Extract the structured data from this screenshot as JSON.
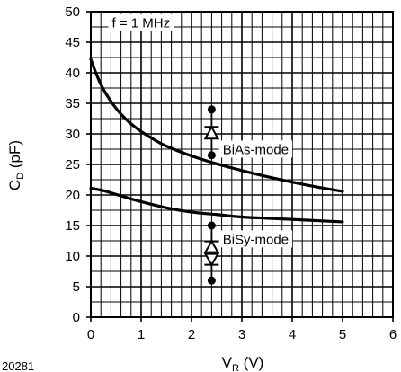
{
  "figure_id": "20281",
  "chart_data": {
    "type": "line",
    "xlabel": {
      "main": "V",
      "sub": "R",
      "unit": " (V)"
    },
    "ylabel": {
      "main": "C",
      "sub": "D",
      "unit": " (pF)"
    },
    "xlim": [
      0,
      6
    ],
    "ylim": [
      0,
      50
    ],
    "x_ticks": [
      0,
      1,
      2,
      3,
      4,
      5,
      6
    ],
    "y_ticks": [
      0,
      5,
      10,
      15,
      20,
      25,
      30,
      35,
      40,
      45,
      50
    ],
    "x_tick_labels": [
      "0",
      "1",
      "2",
      "3",
      "4",
      "5",
      "6"
    ],
    "y_tick_labels": [
      "0",
      "5",
      "10",
      "15",
      "20",
      "25",
      "30",
      "35",
      "40",
      "45",
      "50"
    ],
    "minor_x_step": 0.2,
    "minor_y_step": 2.5,
    "grid": true,
    "colors": {
      "line": "#000000",
      "grid": "#000000",
      "background": "#ffffff"
    },
    "annotations": [
      {
        "text": "f = 1 MHz",
        "x": 0.42,
        "y": 47.7
      },
      {
        "text": "BiAs-mode",
        "x": 2.62,
        "y": 27.0
      },
      {
        "text": "BiSy-mode",
        "x": 2.62,
        "y": 12.3
      }
    ],
    "series": [
      {
        "x": [
          0,
          0.1,
          0.25,
          0.5,
          0.75,
          1.0,
          1.25,
          1.5,
          2.0,
          2.5,
          3.0,
          3.5,
          4.0,
          4.5,
          5.0
        ],
        "y": [
          42.2,
          40.0,
          37.3,
          34.2,
          32.0,
          30.4,
          29.1,
          28.0,
          26.4,
          25.1,
          24.0,
          23.0,
          22.1,
          21.3,
          20.6
        ]
      },
      {
        "x": [
          0,
          0.25,
          0.5,
          1.0,
          1.5,
          2.0,
          2.5,
          3.0,
          3.5,
          4.0,
          4.5,
          5.0
        ],
        "y": [
          21.1,
          20.7,
          20.1,
          18.9,
          17.9,
          17.2,
          16.8,
          16.4,
          16.2,
          16.0,
          15.8,
          15.6
        ]
      }
    ],
    "symbols": [
      {
        "name": "bias-diode-symbol",
        "type": "single",
        "x": 2.4,
        "y_top": 34,
        "y_bottom": 26.5
      },
      {
        "name": "bisy-diode-symbol",
        "type": "double",
        "x": 2.4,
        "y_top": 15,
        "y_bottom": 6
      }
    ]
  }
}
